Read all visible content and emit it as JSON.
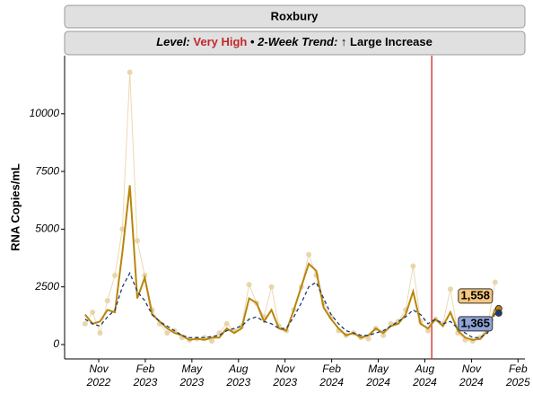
{
  "chart_data": {
    "type": "line",
    "title": "Roxbury",
    "subtitle": {
      "level_label": "Level:",
      "level": "Very High",
      "separator": "•",
      "trend_label": "2-Week Trend:",
      "trend": "↑ Large Increase"
    },
    "y_label": "RNA Copies/mL",
    "x": [
      2022.76,
      2022.8,
      2022.84,
      2022.88,
      2022.92,
      2022.96,
      2023.0,
      2023.04,
      2023.08,
      2023.12,
      2023.16,
      2023.2,
      2023.24,
      2023.28,
      2023.32,
      2023.36,
      2023.4,
      2023.44,
      2023.48,
      2023.52,
      2023.56,
      2023.6,
      2023.64,
      2023.68,
      2023.72,
      2023.76,
      2023.8,
      2023.84,
      2023.88,
      2023.92,
      2023.96,
      2024.0,
      2024.04,
      2024.08,
      2024.12,
      2024.16,
      2024.2,
      2024.24,
      2024.28,
      2024.32,
      2024.36,
      2024.4,
      2024.44,
      2024.48,
      2024.52,
      2024.56,
      2024.6,
      2024.64,
      2024.68,
      2024.72,
      2024.76,
      2024.8,
      2024.84,
      2024.88,
      2024.92,
      2024.96
    ],
    "series": [
      {
        "style": "points",
        "color": "#e6d0a0",
        "values": [
          900,
          1400,
          500,
          1900,
          3000,
          5000,
          11800,
          4500,
          3000,
          1500,
          900,
          500,
          600,
          300,
          200,
          250,
          300,
          150,
          500,
          900,
          600,
          800,
          2600,
          1800,
          1200,
          2500,
          800,
          600,
          1500,
          2500,
          3900,
          3000,
          1800,
          1200,
          600,
          400,
          500,
          300,
          250,
          700,
          400,
          900,
          1000,
          1500,
          3400,
          1000,
          600,
          1100,
          900,
          2400,
          500,
          200,
          150,
          300,
          800,
          2700
        ]
      },
      {
        "style": "solid",
        "color": "#b8860b",
        "label_color": "#f5c77e",
        "end_label": "1,558",
        "values": [
          1300,
          900,
          1000,
          1500,
          1400,
          4000,
          6900,
          2000,
          2900,
          1300,
          1000,
          700,
          500,
          400,
          200,
          250,
          200,
          300,
          300,
          700,
          500,
          700,
          2000,
          1800,
          1000,
          1500,
          700,
          600,
          1500,
          2500,
          3500,
          3200,
          1600,
          1100,
          700,
          400,
          500,
          300,
          400,
          700,
          500,
          800,
          900,
          1300,
          2300,
          900,
          700,
          1100,
          800,
          1400,
          600,
          300,
          200,
          250,
          600,
          1558
        ]
      },
      {
        "style": "dashed",
        "color": "#1f3a6e",
        "label_color": "#8fa3d6",
        "end_label": "1,365",
        "values": [
          1100,
          900,
          800,
          1200,
          1500,
          2500,
          3100,
          2300,
          1900,
          1300,
          1000,
          800,
          600,
          400,
          300,
          300,
          300,
          350,
          400,
          600,
          700,
          800,
          1100,
          1200,
          1000,
          900,
          700,
          700,
          1200,
          1800,
          2500,
          2700,
          2000,
          1300,
          900,
          600,
          500,
          400,
          400,
          500,
          600,
          800,
          1000,
          1200,
          1500,
          1300,
          900,
          1100,
          900,
          1000,
          700,
          500,
          300,
          300,
          500,
          1365
        ]
      }
    ],
    "vline": {
      "x": 2024.62,
      "color": "#d62020"
    },
    "xlim": [
      2022.65,
      2025.12
    ],
    "ylim": [
      -622,
      12520
    ],
    "yticks": [
      0,
      2500,
      5000,
      7500,
      10000
    ],
    "xticks": [
      {
        "value": 2022.833,
        "label": "Nov 2022"
      },
      {
        "value": 2023.083,
        "label": "Feb 2023"
      },
      {
        "value": 2023.333,
        "label": "May 2023"
      },
      {
        "value": 2023.583,
        "label": "Aug 2023"
      },
      {
        "value": 2023.833,
        "label": "Nov 2023"
      },
      {
        "value": 2024.083,
        "label": "Feb 2024"
      },
      {
        "value": 2024.333,
        "label": "May 2024"
      },
      {
        "value": 2024.583,
        "label": "Aug 2024"
      },
      {
        "value": 2024.833,
        "label": "Nov 2024"
      },
      {
        "value": 2025.083,
        "label": "Feb 2025"
      }
    ]
  }
}
